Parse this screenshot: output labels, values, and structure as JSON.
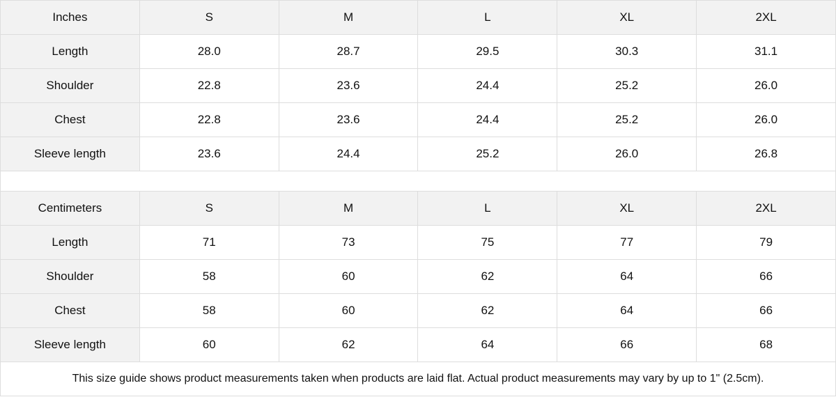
{
  "tables": [
    {
      "unit": "Inches",
      "sizes": [
        "S",
        "M",
        "L",
        "XL",
        "2XL"
      ],
      "rows": [
        {
          "label": "Length",
          "values": [
            "28.0",
            "28.7",
            "29.5",
            "30.3",
            "31.1"
          ]
        },
        {
          "label": "Shoulder",
          "values": [
            "22.8",
            "23.6",
            "24.4",
            "25.2",
            "26.0"
          ]
        },
        {
          "label": "Chest",
          "values": [
            "22.8",
            "23.6",
            "24.4",
            "25.2",
            "26.0"
          ]
        },
        {
          "label": "Sleeve length",
          "values": [
            "23.6",
            "24.4",
            "25.2",
            "26.0",
            "26.8"
          ]
        }
      ]
    },
    {
      "unit": "Centimeters",
      "sizes": [
        "S",
        "M",
        "L",
        "XL",
        "2XL"
      ],
      "rows": [
        {
          "label": "Length",
          "values": [
            "71",
            "73",
            "75",
            "77",
            "79"
          ]
        },
        {
          "label": "Shoulder",
          "values": [
            "58",
            "60",
            "62",
            "64",
            "66"
          ]
        },
        {
          "label": "Chest",
          "values": [
            "58",
            "60",
            "62",
            "64",
            "66"
          ]
        },
        {
          "label": "Sleeve length",
          "values": [
            "60",
            "62",
            "64",
            "66",
            "68"
          ]
        }
      ]
    }
  ],
  "footnote": "This size guide shows product measurements taken when products are laid flat.  Actual product measurements may vary by up to 1\" (2.5cm)."
}
